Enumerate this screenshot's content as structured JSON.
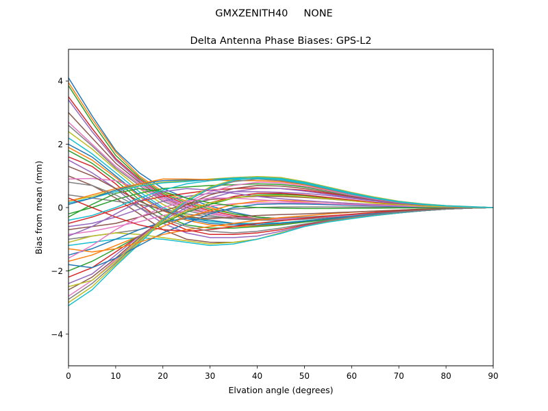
{
  "suptitle": "GMXZENITH40     NONE",
  "chart_data": {
    "type": "line",
    "title": "Delta Antenna Phase Biases: GPS-L2",
    "xlabel": "Elvation angle (degrees)",
    "ylabel": "Bias from mean (mm)",
    "xlim": [
      0,
      90
    ],
    "ylim": [
      -5,
      5
    ],
    "xticks": [
      0,
      10,
      20,
      30,
      40,
      50,
      60,
      70,
      80,
      90
    ],
    "yticks": [
      -4,
      -2,
      0,
      2,
      4
    ],
    "ytick_labels": [
      "−4",
      "−2",
      "0",
      "2",
      "4"
    ],
    "grid": false,
    "x": [
      0,
      5,
      10,
      15,
      20,
      25,
      30,
      35,
      40,
      45,
      50,
      55,
      60,
      65,
      70,
      75,
      80,
      85,
      90
    ],
    "color_cycle": [
      "#1f77b4",
      "#ff7f0e",
      "#2ca02c",
      "#d62728",
      "#9467bd",
      "#8c564b",
      "#e377c2",
      "#7f7f7f",
      "#bcbd22",
      "#17becf"
    ],
    "series": [
      {
        "values": [
          4.1,
          2.9,
          1.8,
          1.1,
          0.6,
          0.3,
          0.05,
          -0.15,
          -0.3,
          -0.35,
          -0.35,
          -0.3,
          -0.25,
          -0.2,
          -0.15,
          -0.1,
          -0.05,
          -0.02,
          0
        ]
      },
      {
        "values": [
          3.95,
          2.8,
          1.75,
          1.0,
          0.5,
          0.2,
          0.0,
          -0.2,
          -0.3,
          -0.35,
          -0.33,
          -0.3,
          -0.25,
          -0.2,
          -0.15,
          -0.1,
          -0.05,
          -0.02,
          0
        ]
      },
      {
        "values": [
          3.85,
          2.7,
          1.65,
          0.95,
          0.45,
          0.15,
          -0.05,
          -0.2,
          -0.3,
          -0.35,
          -0.32,
          -0.3,
          -0.25,
          -0.2,
          -0.15,
          -0.1,
          -0.05,
          -0.02,
          0
        ]
      },
      {
        "values": [
          3.5,
          2.5,
          1.55,
          0.9,
          0.4,
          0.1,
          -0.1,
          -0.25,
          -0.35,
          -0.38,
          -0.35,
          -0.3,
          -0.25,
          -0.2,
          -0.15,
          -0.1,
          -0.05,
          -0.02,
          0
        ]
      },
      {
        "values": [
          3.4,
          2.4,
          1.5,
          0.85,
          0.35,
          0.05,
          -0.15,
          -0.3,
          -0.38,
          -0.4,
          -0.36,
          -0.31,
          -0.25,
          -0.2,
          -0.15,
          -0.1,
          -0.05,
          -0.02,
          0
        ]
      },
      {
        "values": [
          3.0,
          2.2,
          1.4,
          0.8,
          0.3,
          0.0,
          -0.2,
          -0.3,
          -0.38,
          -0.4,
          -0.36,
          -0.31,
          -0.25,
          -0.2,
          -0.15,
          -0.1,
          -0.05,
          -0.02,
          0
        ]
      },
      {
        "values": [
          2.7,
          2.0,
          1.3,
          0.75,
          0.25,
          -0.05,
          -0.2,
          -0.3,
          -0.35,
          -0.38,
          -0.35,
          -0.3,
          -0.25,
          -0.2,
          -0.15,
          -0.1,
          -0.05,
          -0.02,
          0
        ]
      },
      {
        "values": [
          2.6,
          1.95,
          1.25,
          0.7,
          0.2,
          -0.1,
          -0.25,
          -0.35,
          -0.4,
          -0.4,
          -0.37,
          -0.32,
          -0.27,
          -0.2,
          -0.15,
          -0.1,
          -0.05,
          -0.02,
          0
        ]
      },
      {
        "values": [
          2.4,
          1.85,
          1.2,
          0.6,
          0.1,
          -0.25,
          -0.4,
          -0.5,
          -0.5,
          -0.48,
          -0.42,
          -0.35,
          -0.28,
          -0.2,
          -0.15,
          -0.1,
          -0.05,
          -0.02,
          0
        ]
      },
      {
        "values": [
          2.2,
          1.7,
          1.1,
          0.5,
          0.0,
          -0.3,
          -0.45,
          -0.5,
          -0.5,
          -0.48,
          -0.42,
          -0.35,
          -0.28,
          -0.2,
          -0.15,
          -0.1,
          -0.05,
          -0.02,
          0
        ]
      },
      {
        "values": [
          2.0,
          1.6,
          1.0,
          0.4,
          -0.05,
          -0.35,
          -0.5,
          -0.55,
          -0.55,
          -0.5,
          -0.43,
          -0.35,
          -0.28,
          -0.2,
          -0.15,
          -0.1,
          -0.05,
          -0.02,
          0
        ]
      },
      {
        "values": [
          1.9,
          1.5,
          0.95,
          0.35,
          -0.1,
          -0.4,
          -0.55,
          -0.6,
          -0.58,
          -0.52,
          -0.45,
          -0.37,
          -0.29,
          -0.21,
          -0.15,
          -0.1,
          -0.05,
          -0.02,
          0
        ]
      },
      {
        "values": [
          1.8,
          1.4,
          0.85,
          0.25,
          -0.25,
          -0.55,
          -0.65,
          -0.65,
          -0.6,
          -0.55,
          -0.46,
          -0.38,
          -0.3,
          -0.22,
          -0.16,
          -0.1,
          -0.05,
          -0.02,
          0
        ]
      },
      {
        "values": [
          1.6,
          1.3,
          0.75,
          0.1,
          -0.4,
          -0.7,
          -0.85,
          -0.85,
          -0.8,
          -0.7,
          -0.55,
          -0.42,
          -0.32,
          -0.23,
          -0.16,
          -0.1,
          -0.05,
          -0.02,
          0
        ]
      },
      {
        "values": [
          1.5,
          1.1,
          0.6,
          0.0,
          -0.5,
          -0.8,
          -0.95,
          -0.95,
          -0.9,
          -0.75,
          -0.58,
          -0.44,
          -0.33,
          -0.24,
          -0.17,
          -0.1,
          -0.05,
          -0.02,
          0
        ]
      },
      {
        "values": [
          1.0,
          0.7,
          0.3,
          -0.2,
          -0.7,
          -1.0,
          -1.1,
          -1.1,
          -1.0,
          -0.8,
          -0.6,
          -0.45,
          -0.34,
          -0.25,
          -0.17,
          -0.1,
          -0.05,
          -0.02,
          0
        ]
      },
      {
        "values": [
          0.9,
          0.92,
          0.85,
          0.6,
          0.3,
          0.05,
          -0.15,
          -0.3,
          -0.35,
          -0.35,
          -0.32,
          -0.28,
          -0.23,
          -0.18,
          -0.13,
          -0.09,
          -0.05,
          -0.02,
          0
        ]
      },
      {
        "values": [
          0.4,
          0.3,
          0.2,
          0.1,
          -0.05,
          -0.2,
          -0.3,
          -0.35,
          -0.35,
          -0.33,
          -0.3,
          -0.26,
          -0.22,
          -0.17,
          -0.12,
          -0.08,
          -0.04,
          -0.02,
          0
        ]
      },
      {
        "values": [
          0.2,
          0.35,
          0.55,
          0.7,
          0.8,
          0.85,
          0.9,
          0.95,
          0.98,
          0.95,
          0.82,
          0.65,
          0.48,
          0.33,
          0.2,
          0.12,
          0.06,
          0.03,
          0
        ]
      },
      {
        "values": [
          0.15,
          0.3,
          0.5,
          0.68,
          0.78,
          0.82,
          0.88,
          0.93,
          0.96,
          0.92,
          0.8,
          0.63,
          0.46,
          0.31,
          0.19,
          0.11,
          0.06,
          0.03,
          0
        ]
      },
      {
        "values": [
          0.1,
          0.3,
          0.55,
          0.75,
          0.85,
          0.87,
          0.87,
          0.9,
          0.92,
          0.9,
          0.78,
          0.61,
          0.44,
          0.3,
          0.18,
          0.1,
          0.05,
          0.02,
          0
        ]
      },
      {
        "values": [
          0.2,
          0.4,
          0.6,
          0.75,
          0.9,
          0.9,
          0.88,
          0.85,
          0.85,
          0.82,
          0.72,
          0.56,
          0.41,
          0.28,
          0.17,
          0.1,
          0.05,
          0.02,
          0
        ]
      },
      {
        "values": [
          -0.2,
          0.0,
          0.25,
          0.45,
          0.6,
          0.65,
          0.7,
          0.72,
          0.75,
          0.73,
          0.65,
          0.52,
          0.38,
          0.26,
          0.16,
          0.09,
          0.05,
          0.02,
          0
        ]
      },
      {
        "values": [
          -0.5,
          -0.3,
          -0.05,
          0.2,
          0.35,
          0.45,
          0.55,
          0.6,
          0.62,
          0.6,
          0.55,
          0.45,
          0.34,
          0.23,
          0.14,
          0.08,
          0.04,
          0.02,
          0
        ]
      },
      {
        "values": [
          -0.6,
          -0.5,
          -0.3,
          -0.05,
          0.2,
          0.35,
          0.45,
          0.5,
          0.5,
          0.48,
          0.45,
          0.38,
          0.29,
          0.2,
          0.12,
          0.07,
          0.04,
          0.02,
          0
        ]
      },
      {
        "values": [
          -0.7,
          -0.6,
          -0.5,
          -0.3,
          -0.1,
          0.1,
          0.25,
          0.32,
          0.35,
          0.35,
          0.32,
          0.27,
          0.21,
          0.15,
          0.1,
          0.06,
          0.03,
          0.01,
          0
        ]
      },
      {
        "values": [
          -0.85,
          -0.75,
          -0.6,
          -0.45,
          -0.25,
          -0.1,
          0.05,
          0.12,
          0.15,
          0.15,
          0.14,
          0.12,
          0.1,
          0.07,
          0.05,
          0.03,
          0.02,
          0.01,
          0
        ]
      },
      {
        "values": [
          -1.0,
          -0.9,
          -0.8,
          -0.7,
          -0.5,
          -0.3,
          -0.15,
          -0.05,
          0.0,
          0.02,
          0.02,
          0.02,
          0.02,
          0.01,
          0.01,
          0.0,
          0.0,
          0.0,
          0
        ]
      },
      {
        "values": [
          -1.1,
          -0.9,
          -0.8,
          -0.85,
          -0.95,
          -1.05,
          -1.15,
          -1.1,
          -1.0,
          -0.8,
          -0.6,
          -0.45,
          -0.34,
          -0.25,
          -0.17,
          -0.1,
          -0.05,
          -0.02,
          0
        ]
      },
      {
        "values": [
          -1.2,
          -1.1,
          -1.0,
          -0.95,
          -1.0,
          -1.1,
          -1.2,
          -1.15,
          -1.0,
          -0.82,
          -0.6,
          -0.46,
          -0.35,
          -0.25,
          -0.17,
          -0.1,
          -0.05,
          -0.02,
          0
        ]
      },
      {
        "values": [
          -1.5,
          -1.3,
          -1.0,
          -0.7,
          -0.45,
          -0.35,
          -0.4,
          -0.5,
          -0.55,
          -0.5,
          -0.43,
          -0.35,
          -0.28,
          -0.2,
          -0.15,
          -0.1,
          -0.05,
          -0.02,
          0
        ]
      },
      {
        "values": [
          -1.7,
          -1.5,
          -1.2,
          -0.9,
          -0.6,
          -0.3,
          -0.1,
          0.1,
          0.2,
          0.22,
          0.2,
          0.17,
          0.13,
          0.1,
          0.07,
          0.04,
          0.02,
          0.01,
          0
        ]
      },
      {
        "values": [
          -2.0,
          -1.7,
          -1.3,
          -0.9,
          -0.5,
          -0.15,
          0.1,
          0.3,
          0.4,
          0.42,
          0.38,
          0.3,
          0.22,
          0.15,
          0.09,
          0.05,
          0.03,
          0.01,
          0
        ]
      },
      {
        "values": [
          -2.2,
          -1.9,
          -1.4,
          -0.9,
          -0.45,
          -0.1,
          0.15,
          0.35,
          0.45,
          0.45,
          0.4,
          0.32,
          0.24,
          0.16,
          0.1,
          0.06,
          0.03,
          0.01,
          0
        ]
      },
      {
        "values": [
          -2.4,
          -2.1,
          -1.5,
          -0.9,
          -0.4,
          0.0,
          0.3,
          0.5,
          0.6,
          0.6,
          0.52,
          0.42,
          0.31,
          0.21,
          0.13,
          0.07,
          0.04,
          0.02,
          0
        ]
      },
      {
        "values": [
          -2.6,
          -2.2,
          -1.6,
          -0.95,
          -0.35,
          0.1,
          0.4,
          0.6,
          0.7,
          0.68,
          0.6,
          0.48,
          0.35,
          0.24,
          0.15,
          0.08,
          0.04,
          0.02,
          0
        ]
      },
      {
        "values": [
          -2.8,
          -2.3,
          -1.65,
          -1.0,
          -0.35,
          0.15,
          0.5,
          0.7,
          0.8,
          0.78,
          0.68,
          0.54,
          0.39,
          0.26,
          0.16,
          0.09,
          0.05,
          0.02,
          0
        ]
      },
      {
        "values": [
          -2.9,
          -2.4,
          -1.75,
          -1.05,
          -0.35,
          0.2,
          0.6,
          0.82,
          0.9,
          0.85,
          0.74,
          0.58,
          0.42,
          0.28,
          0.17,
          0.1,
          0.05,
          0.02,
          0
        ]
      },
      {
        "values": [
          -3.0,
          -2.5,
          -1.8,
          -1.1,
          -0.35,
          0.25,
          0.65,
          0.88,
          0.96,
          0.9,
          0.78,
          0.61,
          0.44,
          0.3,
          0.18,
          0.1,
          0.05,
          0.02,
          0
        ]
      },
      {
        "values": [
          -3.1,
          -2.6,
          -1.85,
          -1.15,
          -0.4,
          0.2,
          0.62,
          0.86,
          0.95,
          0.9,
          0.78,
          0.61,
          0.44,
          0.3,
          0.18,
          0.1,
          0.05,
          0.02,
          0
        ]
      },
      {
        "values": [
          -1.8,
          -1.9,
          -1.6,
          -1.2,
          -0.8,
          -0.5,
          -0.2,
          0.0,
          0.1,
          0.12,
          0.11,
          0.09,
          0.07,
          0.05,
          0.03,
          0.02,
          0.01,
          0.0,
          0
        ]
      },
      {
        "values": [
          -1.3,
          -1.4,
          -1.3,
          -1.1,
          -0.85,
          -0.7,
          -0.6,
          -0.5,
          -0.4,
          -0.32,
          -0.26,
          -0.2,
          -0.15,
          -0.11,
          -0.08,
          -0.05,
          -0.03,
          -0.01,
          0
        ]
      },
      {
        "values": [
          -0.3,
          0.1,
          0.45,
          0.6,
          0.5,
          0.3,
          0.15,
          0.05,
          0.0,
          -0.02,
          -0.03,
          -0.03,
          -0.02,
          -0.02,
          -0.01,
          -0.01,
          0.0,
          0.0,
          0
        ]
      },
      {
        "values": [
          0.3,
          0.0,
          -0.3,
          -0.55,
          -0.7,
          -0.75,
          -0.7,
          -0.6,
          -0.5,
          -0.42,
          -0.34,
          -0.27,
          -0.21,
          -0.15,
          -0.1,
          -0.06,
          -0.03,
          -0.01,
          0
        ]
      },
      {
        "values": [
          -0.9,
          -0.6,
          -0.2,
          0.2,
          0.5,
          0.6,
          0.55,
          0.45,
          0.35,
          0.28,
          0.22,
          0.17,
          0.13,
          0.09,
          0.06,
          0.04,
          0.02,
          0.01,
          0
        ]
      },
      {
        "values": [
          1.3,
          1.0,
          0.6,
          0.2,
          -0.1,
          -0.3,
          -0.35,
          -0.3,
          -0.25,
          -0.22,
          -0.2,
          -0.17,
          -0.14,
          -0.11,
          -0.08,
          -0.05,
          -0.03,
          -0.01,
          0
        ]
      },
      {
        "values": [
          -1.6,
          -1.2,
          -0.7,
          -0.3,
          0.0,
          0.2,
          0.3,
          0.3,
          0.25,
          0.2,
          0.16,
          0.12,
          0.09,
          0.07,
          0.05,
          0.03,
          0.02,
          0.01,
          0
        ]
      },
      {
        "values": [
          0.8,
          0.7,
          0.4,
          0.0,
          -0.35,
          -0.6,
          -0.75,
          -0.8,
          -0.75,
          -0.65,
          -0.52,
          -0.4,
          -0.3,
          -0.22,
          -0.15,
          -0.09,
          -0.05,
          -0.02,
          0
        ]
      },
      {
        "values": [
          -2.5,
          -2.3,
          -1.7,
          -1.0,
          -0.45,
          -0.1,
          0.15,
          0.3,
          0.38,
          0.38,
          0.34,
          0.28,
          0.21,
          0.14,
          0.09,
          0.05,
          0.03,
          0.01,
          0
        ]
      },
      {
        "values": [
          -0.4,
          -0.25,
          0.0,
          0.3,
          0.55,
          0.75,
          0.85,
          0.9,
          0.92,
          0.88,
          0.76,
          0.6,
          0.43,
          0.29,
          0.18,
          0.1,
          0.05,
          0.02,
          0
        ]
      }
    ]
  }
}
